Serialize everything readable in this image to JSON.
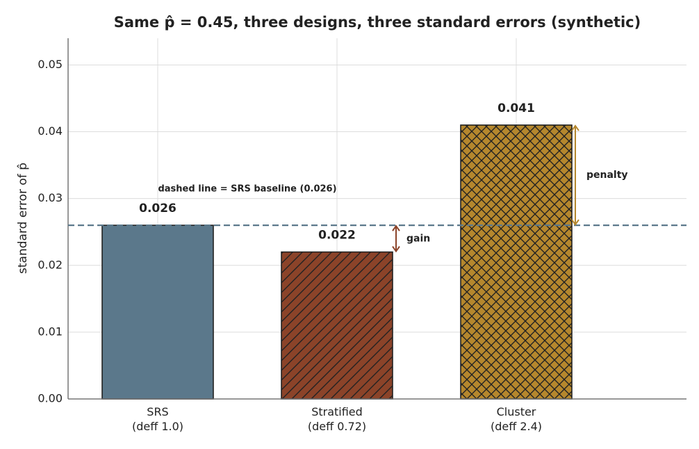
{
  "chart_data": {
    "type": "bar",
    "title": "Same p̂ = 0.45, three designs, three standard errors (synthetic)",
    "y_label": "standard error of p̂",
    "categories": [
      "SRS\n(deff 1.0)",
      "Stratified\n(deff 0.72)",
      "Cluster\n(deff 2.4)"
    ],
    "values": [
      0.026,
      0.022,
      0.041
    ],
    "colors": [
      "#5b788b",
      "#8b4329",
      "#b5872d"
    ],
    "hatches": [
      null,
      "/",
      "x"
    ],
    "ylim": [
      0,
      0.054
    ],
    "yticks": [
      {
        "value": 0,
        "label": "0.00"
      },
      0.01,
      0.02,
      0.03,
      0.04,
      0.05
    ],
    "grid": true,
    "baseline": 0.026,
    "baseline_color": "#5b788b",
    "baseline_note": "dashed line = SRS baseline (0.026)",
    "gain_label": "gain",
    "gain_color": "#8b4329",
    "penalty_label": "penalty",
    "penalty_color": "#b5872d"
  }
}
